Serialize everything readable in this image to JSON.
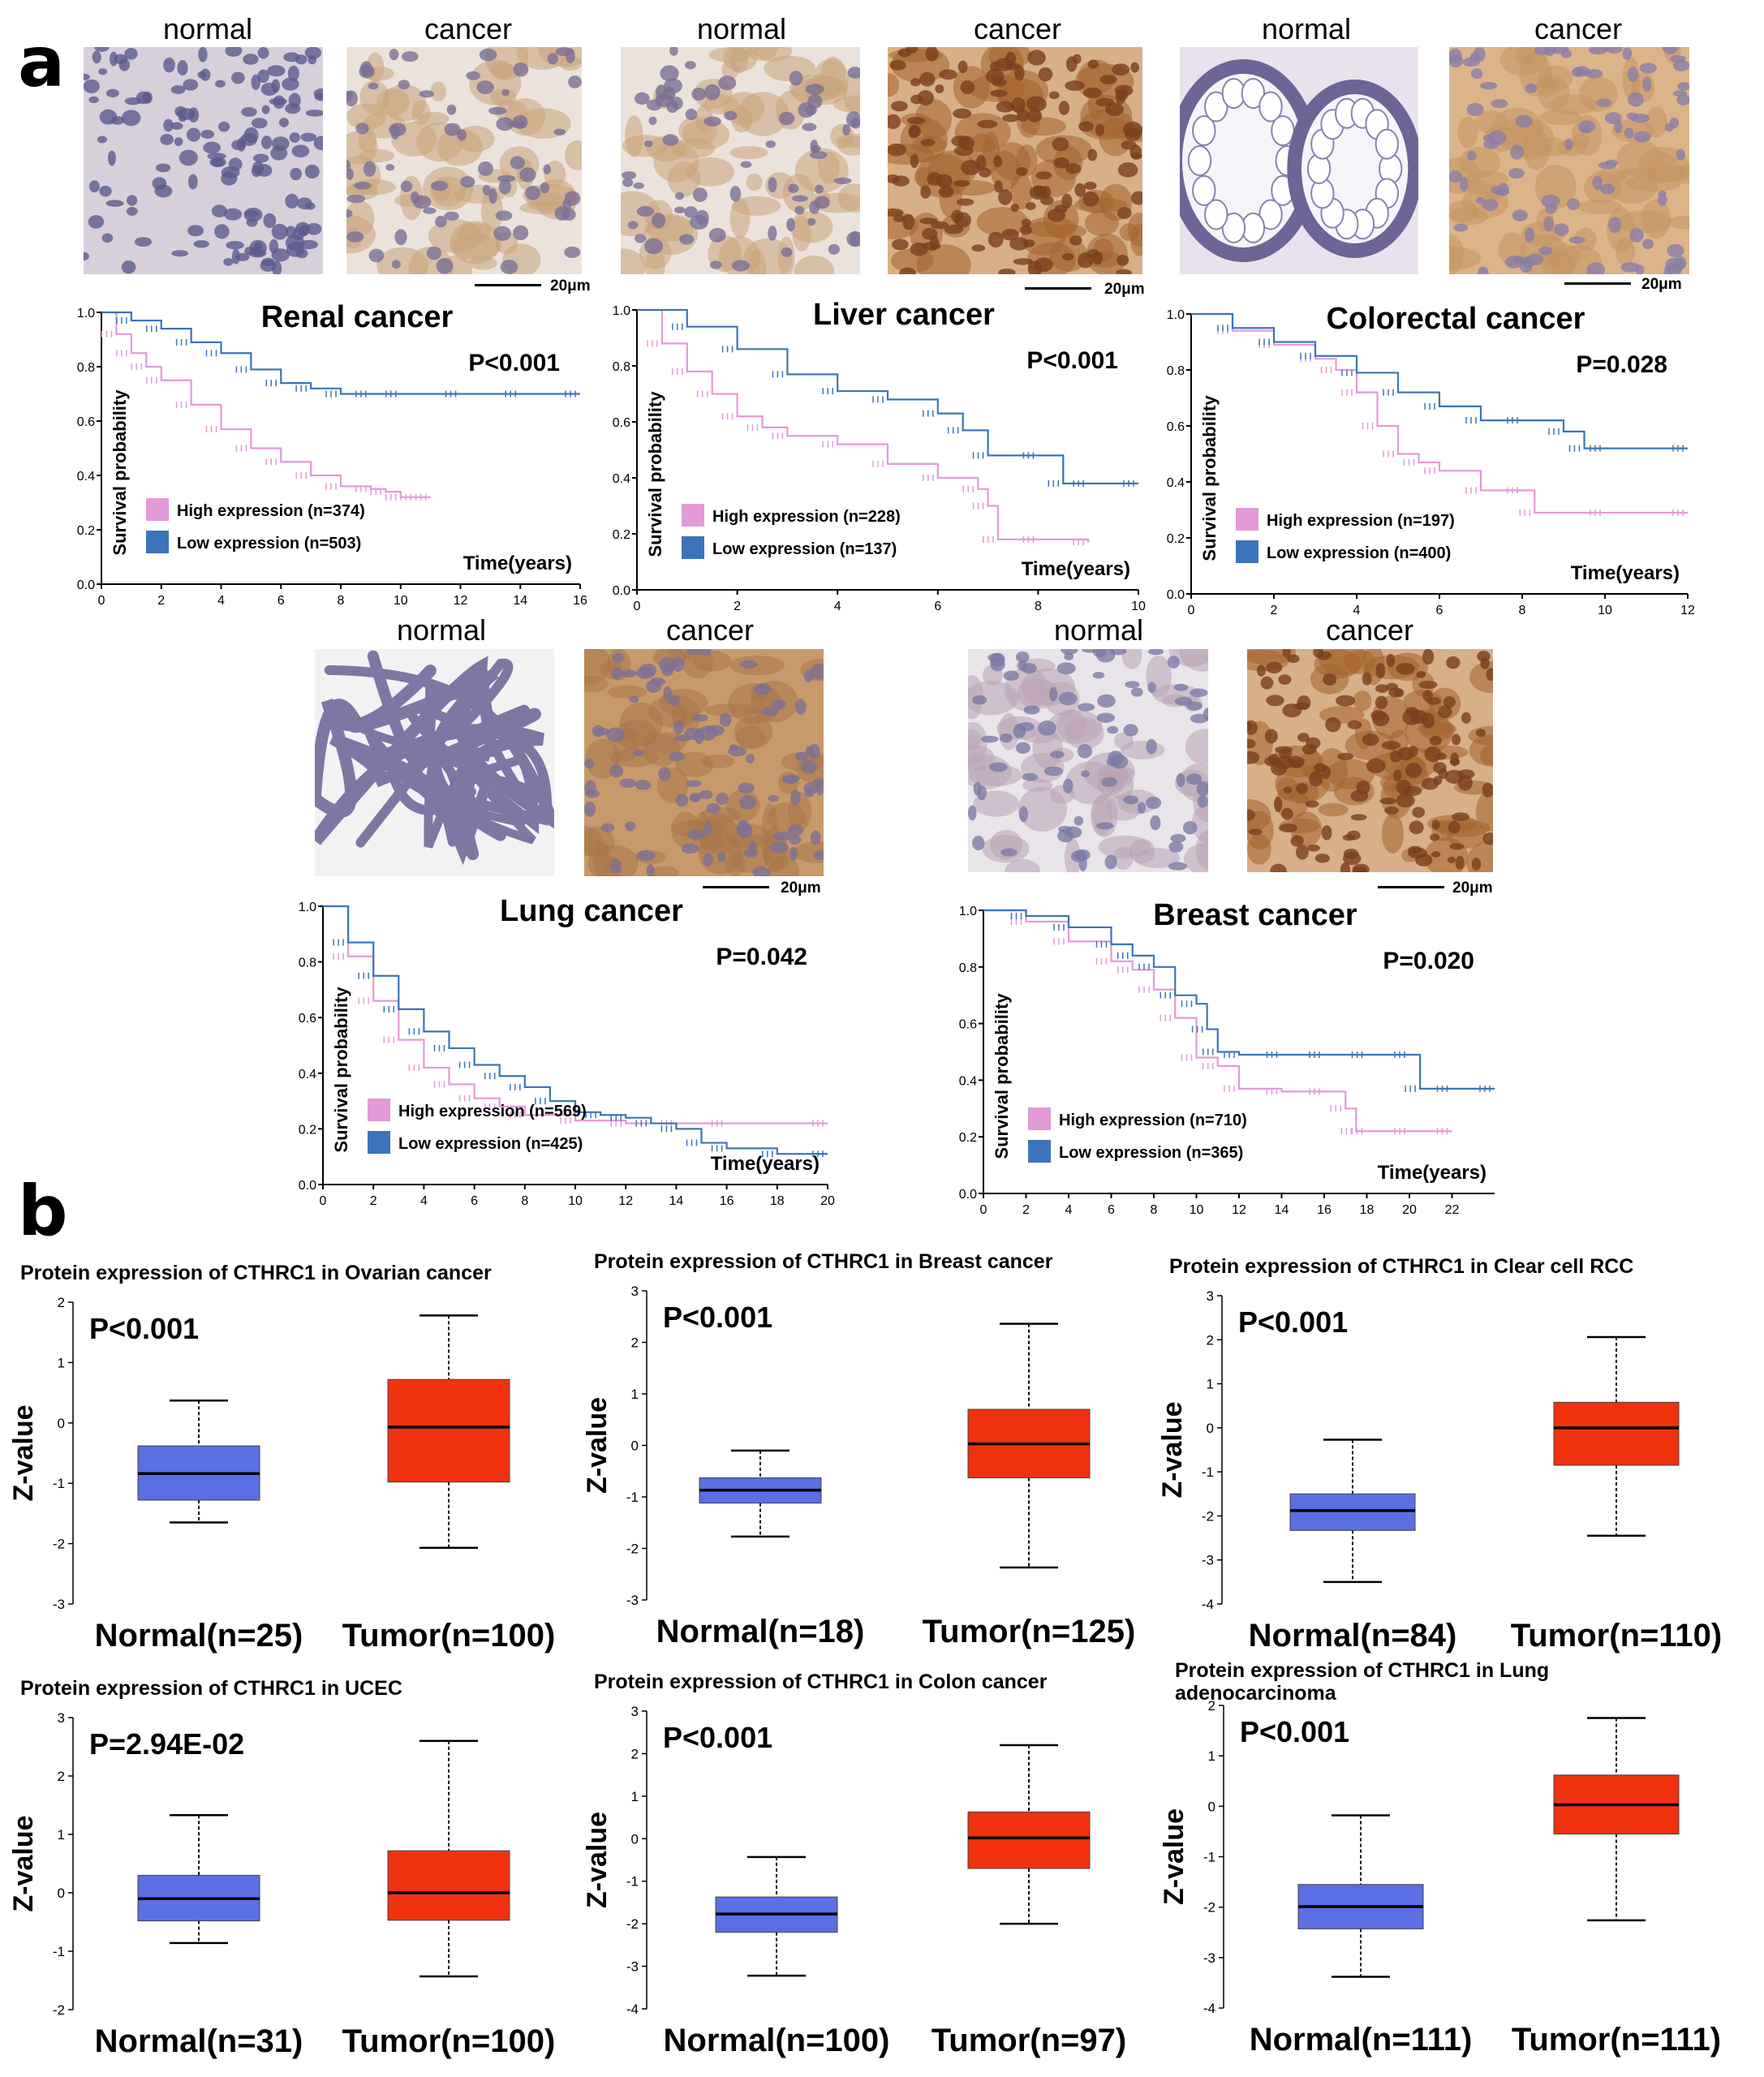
{
  "panels": {
    "a": "a",
    "b": "b"
  },
  "histology": [
    {
      "label": "normal",
      "stain": "blue"
    },
    {
      "label": "cancer",
      "stain": "light"
    },
    {
      "label": "normal",
      "stain": "light"
    },
    {
      "label": "cancer",
      "stain": "dark"
    },
    {
      "label": "normal",
      "stain": "crypt"
    },
    {
      "label": "cancer",
      "stain": "medium"
    },
    {
      "label": "normal",
      "stain": "lung"
    },
    {
      "label": "cancer",
      "stain": "fibrous"
    },
    {
      "label": "normal",
      "stain": "duct"
    },
    {
      "label": "cancer",
      "stain": "dark"
    }
  ],
  "scale_label": "20μm",
  "colors": {
    "high": "#e39ad8",
    "low": "#3d74b9",
    "normal_box": "#5a6fe3",
    "tumor_box": "#f0320f"
  },
  "km_common": {
    "ylabel": "Survival probability",
    "xlabel": "Time(years)",
    "high_label": "High expression",
    "low_label": "Low expression"
  },
  "chart_data": [
    {
      "type": "line",
      "title": "Renal cancer",
      "pvalue": "P<0.001",
      "xlim": [
        0,
        16
      ],
      "ylim": [
        0,
        1.0
      ],
      "xticks": [
        "0",
        "2",
        "4",
        "6",
        "8",
        "10",
        "12",
        "14",
        "16"
      ],
      "yticks": [
        "0.0",
        "0.2",
        "0.4",
        "0.6",
        "0.8",
        "1.0"
      ],
      "high_n": "(n=374)",
      "low_n": "(n=503)",
      "series": [
        {
          "name": "High expression",
          "x": [
            0,
            0.5,
            1,
            1.5,
            2,
            3,
            4,
            5,
            6,
            7,
            8,
            9,
            9.5,
            10,
            10.5,
            11
          ],
          "y": [
            1.0,
            0.92,
            0.85,
            0.8,
            0.75,
            0.66,
            0.57,
            0.5,
            0.45,
            0.4,
            0.36,
            0.35,
            0.34,
            0.32,
            0.32,
            0.32
          ]
        },
        {
          "name": "Low expression",
          "x": [
            0,
            1,
            2,
            3,
            4,
            5,
            6,
            7,
            8,
            9,
            10,
            12,
            14,
            16
          ],
          "y": [
            1.0,
            0.97,
            0.94,
            0.89,
            0.85,
            0.79,
            0.74,
            0.72,
            0.7,
            0.7,
            0.7,
            0.7,
            0.7,
            0.7
          ]
        }
      ]
    },
    {
      "type": "line",
      "title": "Liver cancer",
      "pvalue": "P<0.001",
      "xlim": [
        0,
        10
      ],
      "ylim": [
        0,
        1.0
      ],
      "xticks": [
        "0",
        "2",
        "4",
        "6",
        "8",
        "10"
      ],
      "yticks": [
        "0.0",
        "0.2",
        "0.4",
        "0.6",
        "0.8",
        "1.0"
      ],
      "high_n": "(n=228)",
      "low_n": "(n=137)",
      "series": [
        {
          "name": "High expression",
          "x": [
            0,
            0.5,
            1,
            1.5,
            2,
            2.5,
            3,
            4,
            5,
            6,
            6.8,
            7,
            7.2,
            8,
            9
          ],
          "y": [
            1.0,
            0.88,
            0.78,
            0.7,
            0.62,
            0.58,
            0.55,
            0.52,
            0.45,
            0.4,
            0.36,
            0.3,
            0.18,
            0.18,
            0.17
          ]
        },
        {
          "name": "Low expression",
          "x": [
            0,
            1,
            2,
            3,
            4,
            5,
            6,
            6.5,
            7,
            8,
            8.5,
            9,
            10
          ],
          "y": [
            1.0,
            0.94,
            0.86,
            0.77,
            0.71,
            0.68,
            0.63,
            0.57,
            0.48,
            0.48,
            0.38,
            0.38,
            0.38
          ]
        }
      ]
    },
    {
      "type": "line",
      "title": "Colorectal cancer",
      "pvalue": "P=0.028",
      "xlim": [
        0,
        12
      ],
      "ylim": [
        0,
        1.0
      ],
      "xticks": [
        "0",
        "2",
        "4",
        "6",
        "8",
        "10",
        "12"
      ],
      "yticks": [
        "0.0",
        "0.2",
        "0.4",
        "0.6",
        "0.8",
        "1.0"
      ],
      "high_n": "(n=197)",
      "low_n": "(n=400)",
      "series": [
        {
          "name": "High expression",
          "x": [
            0,
            1,
            2,
            3,
            3.5,
            4,
            4.5,
            5,
            5.5,
            6,
            7,
            8,
            8.3,
            10,
            12
          ],
          "y": [
            1.0,
            0.94,
            0.89,
            0.84,
            0.8,
            0.72,
            0.6,
            0.5,
            0.47,
            0.44,
            0.37,
            0.37,
            0.29,
            0.29,
            0.29
          ]
        },
        {
          "name": "Low expression",
          "x": [
            0,
            1,
            2,
            3,
            4,
            5,
            6,
            7,
            8,
            9,
            9.5,
            10,
            12
          ],
          "y": [
            1.0,
            0.95,
            0.9,
            0.85,
            0.79,
            0.72,
            0.67,
            0.62,
            0.62,
            0.58,
            0.52,
            0.52,
            0.52
          ]
        }
      ]
    },
    {
      "type": "line",
      "title": "Lung cancer",
      "pvalue": "P=0.042",
      "xlim": [
        0,
        20
      ],
      "ylim": [
        0,
        1.0
      ],
      "xticks": [
        "0",
        "2",
        "4",
        "6",
        "8",
        "10",
        "12",
        "14",
        "16",
        "18",
        "20"
      ],
      "yticks": [
        "0.0",
        "0.2",
        "0.4",
        "0.6",
        "0.8",
        "1.0"
      ],
      "high_n": "(n=569)",
      "low_n": "(n=425)",
      "series": [
        {
          "name": "High expression",
          "x": [
            0,
            1,
            2,
            3,
            4,
            5,
            6,
            7,
            8,
            10,
            12,
            14,
            16,
            20
          ],
          "y": [
            1.0,
            0.82,
            0.66,
            0.52,
            0.42,
            0.36,
            0.31,
            0.28,
            0.25,
            0.23,
            0.22,
            0.22,
            0.22,
            0.22
          ]
        },
        {
          "name": "Low expression",
          "x": [
            0,
            1,
            2,
            3,
            4,
            5,
            6,
            7,
            8,
            9,
            10,
            11,
            12,
            13,
            14,
            15,
            16,
            18,
            20
          ],
          "y": [
            1.0,
            0.87,
            0.75,
            0.63,
            0.55,
            0.49,
            0.43,
            0.39,
            0.35,
            0.3,
            0.26,
            0.25,
            0.24,
            0.22,
            0.2,
            0.15,
            0.13,
            0.11,
            0.11
          ]
        }
      ]
    },
    {
      "type": "line",
      "title": "Breast cancer",
      "pvalue": "P=0.020",
      "xlim": [
        0,
        24
      ],
      "ylim": [
        0,
        1.0
      ],
      "xticks": [
        "0",
        "2",
        "4",
        "6",
        "8",
        "10",
        "12",
        "14",
        "16",
        "18",
        "20",
        "22"
      ],
      "yticks": [
        "0.0",
        "0.2",
        "0.4",
        "0.6",
        "0.8",
        "1.0"
      ],
      "high_n": "(n=710)",
      "low_n": "(n=365)",
      "series": [
        {
          "name": "High expression",
          "x": [
            0,
            2,
            4,
            6,
            7,
            8,
            9,
            10,
            11,
            12,
            14,
            16,
            17,
            17.5,
            18,
            20,
            22
          ],
          "y": [
            1.0,
            0.96,
            0.89,
            0.82,
            0.79,
            0.72,
            0.62,
            0.48,
            0.45,
            0.37,
            0.36,
            0.36,
            0.3,
            0.22,
            0.22,
            0.22,
            0.22
          ]
        },
        {
          "name": "Low expression",
          "x": [
            0,
            2,
            4,
            6,
            7,
            8,
            9,
            10,
            10.5,
            11,
            12,
            14,
            16,
            18,
            20,
            20.5,
            22,
            24
          ],
          "y": [
            1.0,
            0.98,
            0.94,
            0.88,
            0.84,
            0.8,
            0.7,
            0.67,
            0.58,
            0.5,
            0.49,
            0.49,
            0.49,
            0.49,
            0.49,
            0.37,
            0.37,
            0.37
          ]
        }
      ]
    },
    {
      "type": "box",
      "title": "Protein expression of CTHRC1 in Ovarian cancer",
      "title2": "",
      "pvalue": "P<0.001",
      "ylabel": "Z-value",
      "ylim": [
        -3,
        2
      ],
      "yticks": [
        "-3",
        "-2",
        "-1",
        "0",
        "1",
        "2"
      ],
      "categories": [
        "Normal(n=25)",
        "Tumor(n=100)"
      ],
      "boxes": [
        {
          "min": -1.65,
          "q1": -1.28,
          "median": -0.84,
          "q3": -0.38,
          "max": 0.37
        },
        {
          "min": -2.07,
          "q1": -0.98,
          "median": -0.07,
          "q3": 0.72,
          "max": 1.78
        }
      ]
    },
    {
      "type": "box",
      "title": "Protein expression of CTHRC1 in Breast cancer",
      "title2": "",
      "pvalue": "P<0.001",
      "ylabel": "Z-value",
      "ylim": [
        -3,
        3
      ],
      "yticks": [
        "-3",
        "-2",
        "-1",
        "0",
        "1",
        "2",
        "3"
      ],
      "categories": [
        "Normal(n=18)",
        "Tumor(n=125)"
      ],
      "boxes": [
        {
          "min": -1.77,
          "q1": -1.12,
          "median": -0.87,
          "q3": -0.63,
          "max": -0.1
        },
        {
          "min": -2.37,
          "q1": -0.63,
          "median": 0.03,
          "q3": 0.7,
          "max": 2.36
        }
      ]
    },
    {
      "type": "box",
      "title": "Protein expression of CTHRC1 in Clear cell RCC",
      "title2": "",
      "pvalue": "P<0.001",
      "ylabel": "Z-value",
      "ylim": [
        -4,
        3
      ],
      "yticks": [
        "-4",
        "-3",
        "-2",
        "-1",
        "0",
        "1",
        "2",
        "3"
      ],
      "categories": [
        "Normal(n=84)",
        "Tumor(n=110)"
      ],
      "boxes": [
        {
          "min": -3.5,
          "q1": -2.33,
          "median": -1.88,
          "q3": -1.5,
          "max": -0.27
        },
        {
          "min": -2.45,
          "q1": -0.85,
          "median": 0.0,
          "q3": 0.58,
          "max": 2.06
        }
      ]
    },
    {
      "type": "box",
      "title": "Protein expression of CTHRC1 in UCEC",
      "title2": "",
      "pvalue": "P=2.94E-02",
      "ylabel": "Z-value",
      "ylim": [
        -2,
        3
      ],
      "yticks": [
        "-2",
        "-1",
        "0",
        "1",
        "2",
        "3"
      ],
      "categories": [
        "Normal(n=31)",
        "Tumor(n=100)"
      ],
      "boxes": [
        {
          "min": -0.86,
          "q1": -0.48,
          "median": -0.1,
          "q3": 0.3,
          "max": 1.33
        },
        {
          "min": -1.43,
          "q1": -0.47,
          "median": 0.0,
          "q3": 0.72,
          "max": 2.6
        }
      ]
    },
    {
      "type": "box",
      "title": "Protein expression of CTHRC1 in Colon cancer",
      "title2": "",
      "pvalue": "P<0.001",
      "ylabel": "Z-value",
      "ylim": [
        -4,
        3
      ],
      "yticks": [
        "-4",
        "-3",
        "-2",
        "-1",
        "0",
        "1",
        "2",
        "3"
      ],
      "categories": [
        "Normal(n=100)",
        "Tumor(n=97)"
      ],
      "boxes": [
        {
          "min": -3.22,
          "q1": -2.2,
          "median": -1.77,
          "q3": -1.37,
          "max": -0.43
        },
        {
          "min": -2.0,
          "q1": -0.7,
          "median": 0.02,
          "q3": 0.63,
          "max": 2.2
        }
      ]
    },
    {
      "type": "box",
      "title": "Protein expression of CTHRC1 in Lung",
      "title2": "adenocarcinoma",
      "pvalue": "P<0.001",
      "ylabel": "Z-value",
      "ylim": [
        -4,
        2
      ],
      "yticks": [
        "-4",
        "-3",
        "-2",
        "-1",
        "0",
        "1",
        "2"
      ],
      "categories": [
        "Normal(n=111)",
        "Tumor(n=111)"
      ],
      "boxes": [
        {
          "min": -3.38,
          "q1": -2.43,
          "median": -1.99,
          "q3": -1.55,
          "max": -0.18
        },
        {
          "min": -2.26,
          "q1": -0.55,
          "median": 0.03,
          "q3": 0.62,
          "max": 1.75
        }
      ]
    }
  ]
}
